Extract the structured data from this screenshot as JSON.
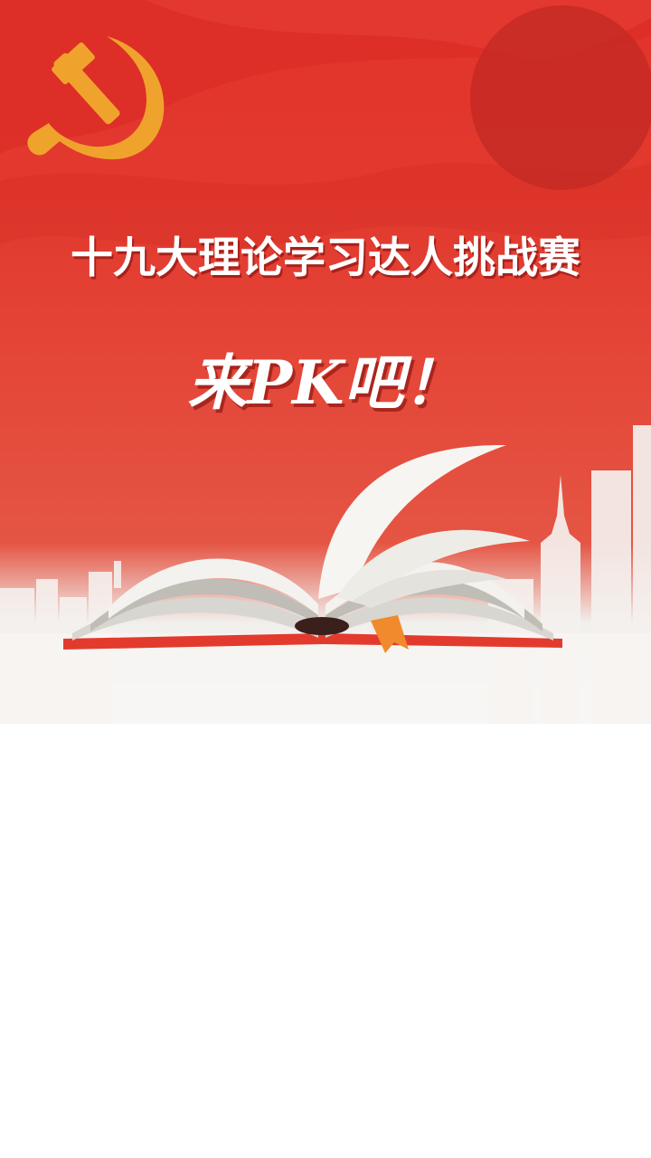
{
  "banner": {
    "headline": "十九大理论学习达人挑战赛",
    "subheadline": "来PK吧！",
    "emblem_icon": "hammer-and-sickle-icon",
    "illustration_icon": "open-book-icon",
    "colors": {
      "primary_red": "#e2332b",
      "emblem_gold": "#f0a32c",
      "text": "#ffffff"
    }
  }
}
